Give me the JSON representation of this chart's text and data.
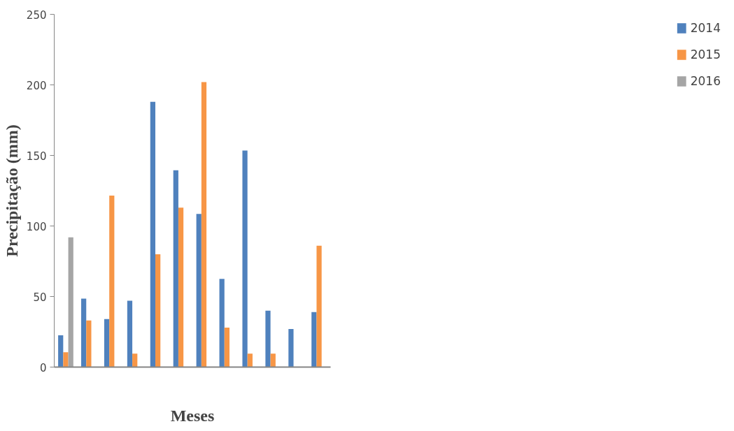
{
  "chart_data": {
    "type": "bar",
    "xlabel": "Meses",
    "ylabel": "Precipitação (mm)",
    "categories": [
      null,
      null,
      null,
      null,
      null,
      null,
      null,
      null,
      null,
      null,
      null,
      null
    ],
    "series": [
      {
        "name": "2014",
        "color": "#4f81bd",
        "values": [
          22.5,
          48.5,
          34,
          47,
          188,
          139.5,
          108.5,
          62.5,
          153.5,
          40,
          27,
          39
        ]
      },
      {
        "name": "2015",
        "color": "#f79646",
        "values": [
          10.5,
          33,
          121.5,
          9.5,
          80,
          113,
          202,
          28,
          9.5,
          9.5,
          null,
          86
        ]
      },
      {
        "name": "2016",
        "color": "#a5a5a5",
        "values": [
          92,
          null,
          null,
          null,
          null,
          null,
          null,
          null,
          null,
          null,
          null,
          null
        ]
      }
    ],
    "ylim": [
      0,
      250
    ],
    "yticks": [
      0,
      50,
      100,
      150,
      200,
      250
    ],
    "grid": false,
    "legend": "right"
  }
}
